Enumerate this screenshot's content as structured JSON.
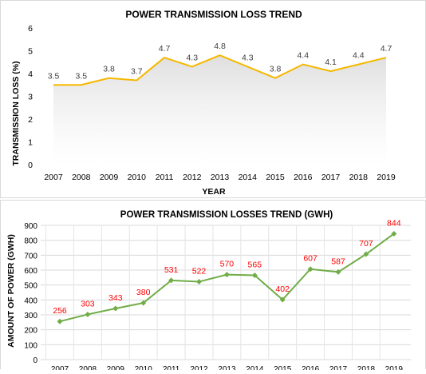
{
  "chart_data": [
    {
      "type": "area",
      "title": "POWER TRANSMISSION LOSS TREND",
      "xlabel": "YEAR",
      "ylabel": "TRANSMISSION LOSS (%)",
      "ylim": [
        0,
        6
      ],
      "yticks": [
        "0",
        "1",
        "2",
        "3",
        "4",
        "5",
        "6"
      ],
      "categories": [
        "2007",
        "2008",
        "2009",
        "2010",
        "2011",
        "2012",
        "2013",
        "2014",
        "2015",
        "2016",
        "2017",
        "2018",
        "2019"
      ],
      "values": [
        3.5,
        3.5,
        3.8,
        3.7,
        4.7,
        4.3,
        4.8,
        4.3,
        3.8,
        4.4,
        4.1,
        4.4,
        4.7
      ],
      "labels": [
        "3.5",
        "3.5",
        "3.8",
        "3.7",
        "4.7",
        "4.3",
        "4.8",
        "4.3",
        "3.8",
        "4.4",
        "4.1",
        "4.4",
        "4.7"
      ],
      "grid": false,
      "colors": {
        "line": "#f5b800",
        "label": "#404040"
      }
    },
    {
      "type": "line",
      "title": "POWER TRANSMISSION LOSSES TREND (GWH)",
      "xlabel": "",
      "ylabel": "AMOUNT OF POWER (GWH)",
      "ylim": [
        0,
        900
      ],
      "yticks": [
        "0",
        "100",
        "200",
        "300",
        "400",
        "500",
        "600",
        "700",
        "800",
        "900"
      ],
      "categories": [
        "2007",
        "2008",
        "2009",
        "2010",
        "2011",
        "2012",
        "2013",
        "2014",
        "2015",
        "2016",
        "2017",
        "2018",
        "2019"
      ],
      "values": [
        256,
        303,
        343,
        380,
        531,
        522,
        570,
        565,
        402,
        607,
        587,
        707,
        844
      ],
      "labels": [
        "256",
        "303",
        "343",
        "380",
        "531",
        "522",
        "570",
        "565",
        "402",
        "607",
        "587",
        "707",
        "844"
      ],
      "grid": true,
      "colors": {
        "line": "#70ad47",
        "label": "#ff0000"
      }
    }
  ]
}
